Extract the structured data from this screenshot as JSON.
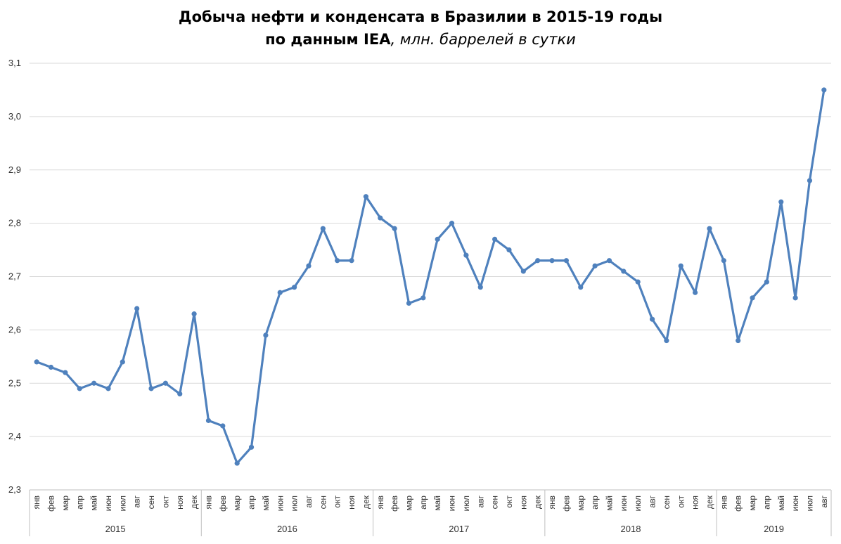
{
  "chart_data": {
    "type": "line",
    "title": "Добыча нефти и конденсата в Бразилии в 2015-19 годы",
    "subtitle_bold": "по данным IEA",
    "subtitle_unit": ", млн. баррелей в сутки",
    "ylim": [
      2.3,
      3.1
    ],
    "y_ticks": [
      "2,3",
      "2,4",
      "2,5",
      "2,6",
      "2,7",
      "2,8",
      "2,9",
      "3,0",
      "3,1"
    ],
    "grid": true,
    "legend": "none",
    "color": "#4F81BD",
    "years": [
      {
        "label": "2015",
        "months": [
          "янв",
          "фев",
          "мар",
          "апр",
          "май",
          "июн",
          "июл",
          "авг",
          "сен",
          "окт",
          "ноя",
          "дек"
        ]
      },
      {
        "label": "2016",
        "months": [
          "янв",
          "фев",
          "мар",
          "апр",
          "май",
          "июн",
          "июл",
          "авг",
          "сен",
          "окт",
          "ноя",
          "дек"
        ]
      },
      {
        "label": "2017",
        "months": [
          "янв",
          "фев",
          "мар",
          "апр",
          "май",
          "июн",
          "июл",
          "авг",
          "сен",
          "окт",
          "ноя",
          "дек"
        ]
      },
      {
        "label": "2018",
        "months": [
          "янв",
          "фев",
          "мар",
          "апр",
          "май",
          "июн",
          "июл",
          "авг",
          "сен",
          "окт",
          "ноя",
          "дек"
        ]
      },
      {
        "label": "2019",
        "months": [
          "янв",
          "фев",
          "мар",
          "апр",
          "май",
          "июн",
          "июл",
          "авг"
        ]
      }
    ],
    "values": [
      2.54,
      2.53,
      2.52,
      2.49,
      2.5,
      2.49,
      2.54,
      2.64,
      2.49,
      2.5,
      2.48,
      2.63,
      2.43,
      2.42,
      2.35,
      2.38,
      2.59,
      2.67,
      2.68,
      2.72,
      2.79,
      2.73,
      2.73,
      2.85,
      2.81,
      2.79,
      2.65,
      2.66,
      2.77,
      2.8,
      2.74,
      2.68,
      2.77,
      2.75,
      2.71,
      2.73,
      2.73,
      2.73,
      2.68,
      2.72,
      2.73,
      2.71,
      2.69,
      2.62,
      2.58,
      2.72,
      2.67,
      2.79,
      2.73,
      2.58,
      2.66,
      2.69,
      2.84,
      2.66,
      2.88,
      3.05
    ]
  }
}
